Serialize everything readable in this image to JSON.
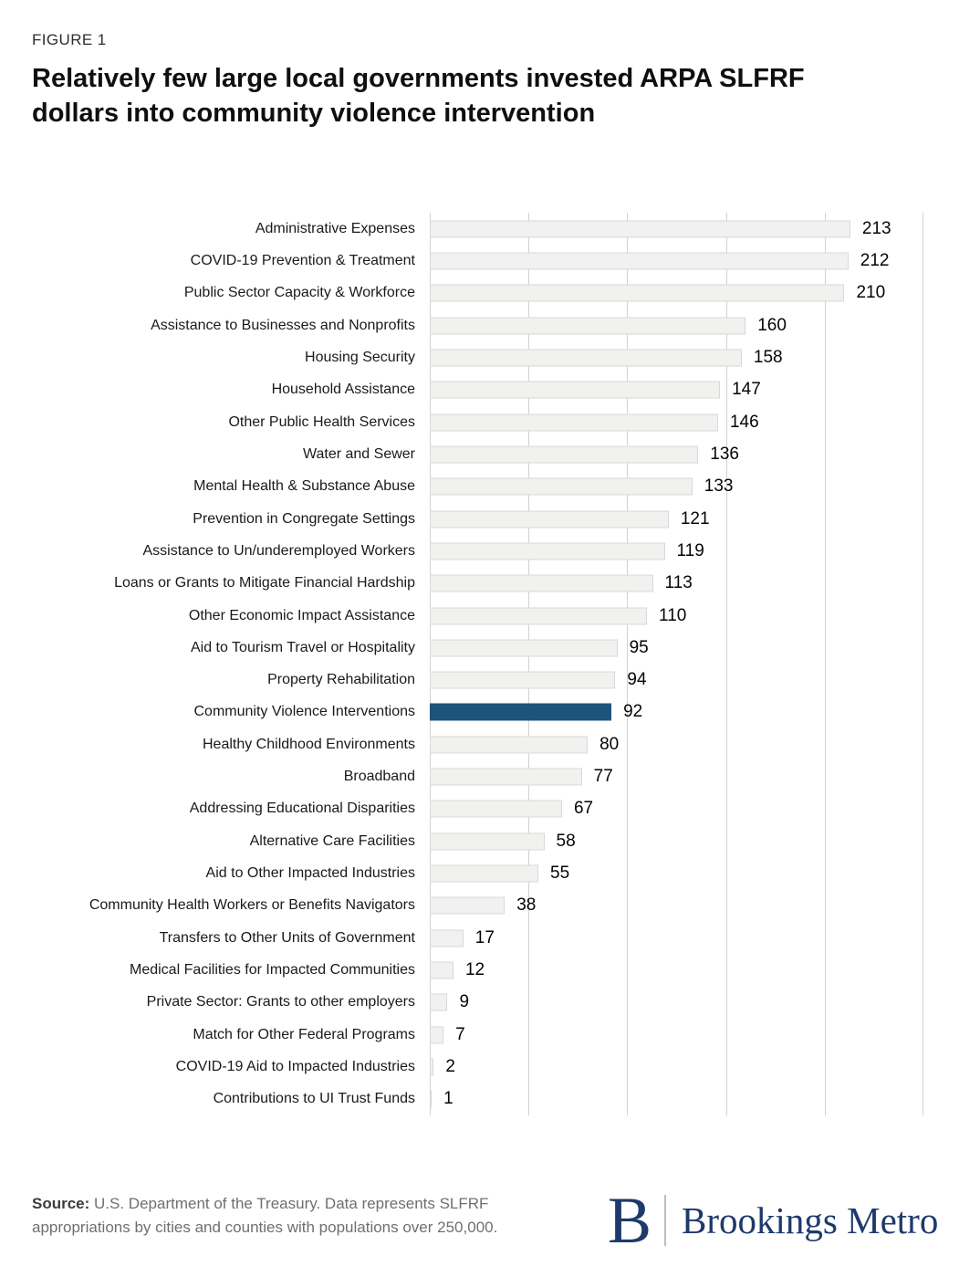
{
  "figure_label": "FIGURE 1",
  "title_lines": [
    "Relatively few large local governments invested ARPA SLFRF",
    "dollars into community violence intervention"
  ],
  "chart_data": {
    "type": "bar",
    "orientation": "horizontal",
    "title": "Relatively few large local governments invested ARPA SLFRF dollars into community violence intervention",
    "xlabel": "",
    "ylabel": "",
    "xlim": [
      0,
      250
    ],
    "gridline_step": 50,
    "grid": "vertical",
    "legend": "none",
    "categories": [
      "Administrative Expenses",
      "COVID-19 Prevention & Treatment",
      "Public Sector Capacity & Workforce",
      "Assistance to Businesses and Nonprofits",
      "Housing Security",
      "Household Assistance",
      "Other Public Health Services",
      "Water and Sewer",
      "Mental Health & Substance Abuse",
      "Prevention in Congregate Settings",
      "Assistance to Un/underemployed Workers",
      "Loans or Grants to Mitigate Financial Hardship",
      "Other Economic Impact Assistance",
      "Aid to Tourism Travel or Hospitality",
      "Property Rehabilitation",
      "Community Violence Interventions",
      "Healthy Childhood Environments",
      "Broadband",
      "Addressing Educational Disparities",
      "Alternative Care Facilities",
      "Aid to Other Impacted Industries",
      "Community Health Workers or Benefits Navigators",
      "Transfers to Other Units of Government",
      "Medical Facilities for Impacted Communities",
      "Private Sector: Grants to other employers",
      "Match for Other Federal Programs",
      "COVID-19 Aid to Impacted Industries",
      "Contributions to UI Trust Funds"
    ],
    "values": [
      213,
      212,
      210,
      160,
      158,
      147,
      146,
      136,
      133,
      121,
      119,
      113,
      110,
      95,
      94,
      92,
      80,
      77,
      67,
      58,
      55,
      38,
      17,
      12,
      9,
      7,
      2,
      1
    ],
    "highlight_category": "Community Violence Interventions",
    "colors": {
      "bar_fill": "#f1f1f0",
      "bar_border": "#d8d8d8",
      "highlight": "#1e537c",
      "gridline": "#d2d2d2"
    }
  },
  "footer": {
    "source_label": "Source:",
    "source_text": " U.S. Department of the Treasury. Data represents SLFRF appropriations by cities and counties with populations over 250,000.",
    "logo": {
      "monogram": "B",
      "wordmark": "Brookings Metro",
      "color": "#1e3a6c"
    }
  }
}
